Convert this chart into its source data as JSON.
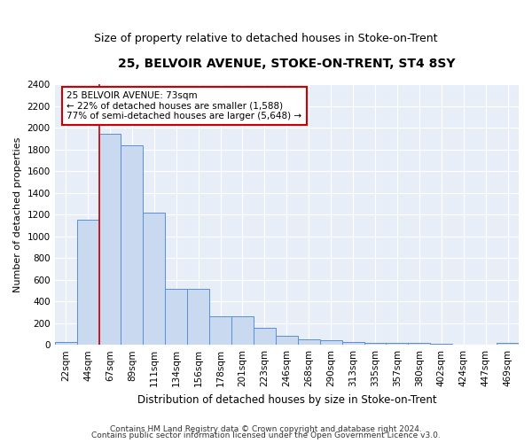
{
  "title1": "25, BELVOIR AVENUE, STOKE-ON-TRENT, ST4 8SY",
  "title2": "Size of property relative to detached houses in Stoke-on-Trent",
  "xlabel": "Distribution of detached houses by size in Stoke-on-Trent",
  "ylabel": "Number of detached properties",
  "categories": [
    "22sqm",
    "44sqm",
    "67sqm",
    "89sqm",
    "111sqm",
    "134sqm",
    "156sqm",
    "178sqm",
    "201sqm",
    "223sqm",
    "246sqm",
    "268sqm",
    "290sqm",
    "313sqm",
    "335sqm",
    "357sqm",
    "380sqm",
    "402sqm",
    "424sqm",
    "447sqm",
    "469sqm"
  ],
  "values": [
    30,
    1150,
    1950,
    1840,
    1220,
    515,
    515,
    265,
    265,
    155,
    80,
    50,
    40,
    30,
    20,
    15,
    15,
    10,
    5,
    3,
    15
  ],
  "bar_color": "#c9d9f0",
  "bar_edge_color": "#5b8fd4",
  "property_label": "25 BELVOIR AVENUE: 73sqm",
  "annotation_line1": "← 22% of detached houses are smaller (1,588)",
  "annotation_line2": "77% of semi-detached houses are larger (5,648) →",
  "vline_color": "#cc0000",
  "annotation_box_color": "#ffffff",
  "annotation_box_edge": "#cc0000",
  "ylim": [
    0,
    2400
  ],
  "yticks": [
    0,
    200,
    400,
    600,
    800,
    1000,
    1200,
    1400,
    1600,
    1800,
    2000,
    2200,
    2400
  ],
  "footnote1": "Contains HM Land Registry data © Crown copyright and database right 2024.",
  "footnote2": "Contains public sector information licensed under the Open Government Licence v3.0.",
  "fig_bg_color": "#ffffff",
  "ax_bg_color": "#e8eef8",
  "grid_color": "#ffffff",
  "title1_fontsize": 10,
  "title2_fontsize": 9,
  "xlabel_fontsize": 8.5,
  "ylabel_fontsize": 8,
  "tick_fontsize": 7.5,
  "annot_fontsize": 7.5,
  "footnote_fontsize": 6.5
}
